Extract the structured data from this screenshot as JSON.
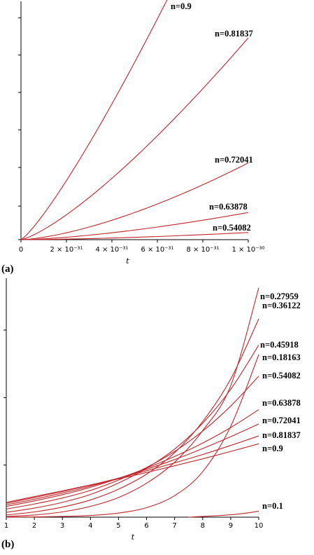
{
  "chart_data": [
    {
      "type": "line",
      "panel_label": "(a)",
      "xlabel": "t",
      "x_ticks": [
        {
          "value": 0,
          "label": "0"
        },
        {
          "value": 2e-31,
          "label": "2 × 10⁻³¹"
        },
        {
          "value": 4e-31,
          "label": "4 × 10⁻³¹"
        },
        {
          "value": 6e-31,
          "label": "6 × 10⁻³¹"
        },
        {
          "value": 8e-31,
          "label": "8 × 10⁻³¹"
        },
        {
          "value": 1e-30,
          "label": "1 × 10⁻³⁰"
        }
      ],
      "xlim": [
        0,
        1e-30
      ],
      "ylim": [
        0,
        1
      ],
      "y_ticks": [
        0,
        0.141,
        0.303,
        0.461,
        0.618,
        0.775,
        0.931
      ],
      "y_tick_labels_visible": false,
      "series": [
        {
          "name": "n=0.9",
          "end": [
            6.5e-31,
            1.02
          ],
          "exponent": 1.2
        },
        {
          "name": "n=0.81837",
          "end": [
            1e-30,
            0.847
          ],
          "exponent": 1.3
        },
        {
          "name": "n=0.72041",
          "end": [
            1e-30,
            0.322
          ],
          "exponent": 1.5
        },
        {
          "name": "n=0.63878",
          "end": [
            1e-30,
            0.114
          ],
          "exponent": 1.5
        },
        {
          "name": "n=0.54082",
          "end": [
            1e-30,
            0.03
          ],
          "exponent": 1.6
        }
      ]
    },
    {
      "type": "line",
      "panel_label": "(b)",
      "xlabel": "t",
      "x_ticks": [
        1,
        2,
        3,
        4,
        5,
        6,
        7,
        8,
        9,
        10
      ],
      "xlim": [
        1,
        10
      ],
      "ylim": [
        0,
        1
      ],
      "y_ticks": [
        0.218,
        0.5,
        0.783
      ],
      "y_tick_labels_visible": false,
      "series": [
        {
          "name": "n=0.27959",
          "points": [
            [
              1,
              0.003
            ],
            [
              2,
              0.009
            ],
            [
              3,
              0.022
            ],
            [
              4,
              0.045
            ],
            [
              5,
              0.082
            ],
            [
              6,
              0.142
            ],
            [
              7,
              0.23
            ],
            [
              8,
              0.362
            ],
            [
              9,
              0.55
            ],
            [
              10,
              0.96
            ]
          ]
        },
        {
          "name": "n=0.36122",
          "points": [
            [
              1,
              0.009
            ],
            [
              2,
              0.022
            ],
            [
              3,
              0.042
            ],
            [
              4,
              0.072
            ],
            [
              5,
              0.117
            ],
            [
              6,
              0.18
            ],
            [
              7,
              0.27
            ],
            [
              8,
              0.4
            ],
            [
              9,
              0.578
            ],
            [
              10,
              0.83
            ]
          ]
        },
        {
          "name": "n=0.45918",
          "points": [
            [
              1,
              0.02
            ],
            [
              2,
              0.038
            ],
            [
              3,
              0.062
            ],
            [
              4,
              0.095
            ],
            [
              5,
              0.143
            ],
            [
              6,
              0.205
            ],
            [
              7,
              0.285
            ],
            [
              8,
              0.393
            ],
            [
              9,
              0.535
            ],
            [
              10,
              0.72
            ]
          ]
        },
        {
          "name": "n=0.18163",
          "points": [
            [
              1,
              0.0005
            ],
            [
              2,
              0.001
            ],
            [
              3,
              0.003
            ],
            [
              4,
              0.007
            ],
            [
              5,
              0.017
            ],
            [
              6,
              0.04
            ],
            [
              7,
              0.09
            ],
            [
              8,
              0.19
            ],
            [
              9,
              0.38
            ],
            [
              10,
              0.68
            ]
          ]
        },
        {
          "name": "n=0.54082",
          "points": [
            [
              1,
              0.034
            ],
            [
              2,
              0.055
            ],
            [
              3,
              0.08
            ],
            [
              4,
              0.112
            ],
            [
              5,
              0.155
            ],
            [
              6,
              0.208
            ],
            [
              7,
              0.275
            ],
            [
              8,
              0.36
            ],
            [
              9,
              0.465
            ],
            [
              10,
              0.59
            ]
          ]
        },
        {
          "name": "n=0.63878",
          "points": [
            [
              1,
              0.045
            ],
            [
              2,
              0.068
            ],
            [
              3,
              0.094
            ],
            [
              4,
              0.125
            ],
            [
              5,
              0.162
            ],
            [
              6,
              0.205
            ],
            [
              7,
              0.254
            ],
            [
              8,
              0.31
            ],
            [
              9,
              0.375
            ],
            [
              10,
              0.45
            ]
          ]
        },
        {
          "name": "n=0.72041",
          "points": [
            [
              1,
              0.052
            ],
            [
              2,
              0.075
            ],
            [
              3,
              0.101
            ],
            [
              4,
              0.13
            ],
            [
              5,
              0.163
            ],
            [
              6,
              0.2
            ],
            [
              7,
              0.241
            ],
            [
              8,
              0.287
            ],
            [
              9,
              0.337
            ],
            [
              10,
              0.39
            ]
          ]
        },
        {
          "name": "n=0.81837",
          "points": [
            [
              1,
              0.058
            ],
            [
              2,
              0.082
            ],
            [
              3,
              0.107
            ],
            [
              4,
              0.134
            ],
            [
              5,
              0.163
            ],
            [
              6,
              0.194
            ],
            [
              7,
              0.227
            ],
            [
              8,
              0.262
            ],
            [
              9,
              0.3
            ],
            [
              10,
              0.34
            ]
          ]
        },
        {
          "name": "n=0.9",
          "points": [
            [
              1,
              0.062
            ],
            [
              2,
              0.086
            ],
            [
              3,
              0.11
            ],
            [
              4,
              0.135
            ],
            [
              5,
              0.16
            ],
            [
              6,
              0.187
            ],
            [
              7,
              0.215
            ],
            [
              8,
              0.244
            ],
            [
              9,
              0.275
            ],
            [
              10,
              0.307
            ]
          ]
        },
        {
          "name": "n=0.1",
          "points": [
            [
              7.5,
              0
            ],
            [
              8,
              0.003
            ],
            [
              8.5,
              0.006
            ],
            [
              9,
              0.01
            ],
            [
              9.5,
              0.016
            ],
            [
              10,
              0.025
            ]
          ]
        }
      ]
    }
  ]
}
